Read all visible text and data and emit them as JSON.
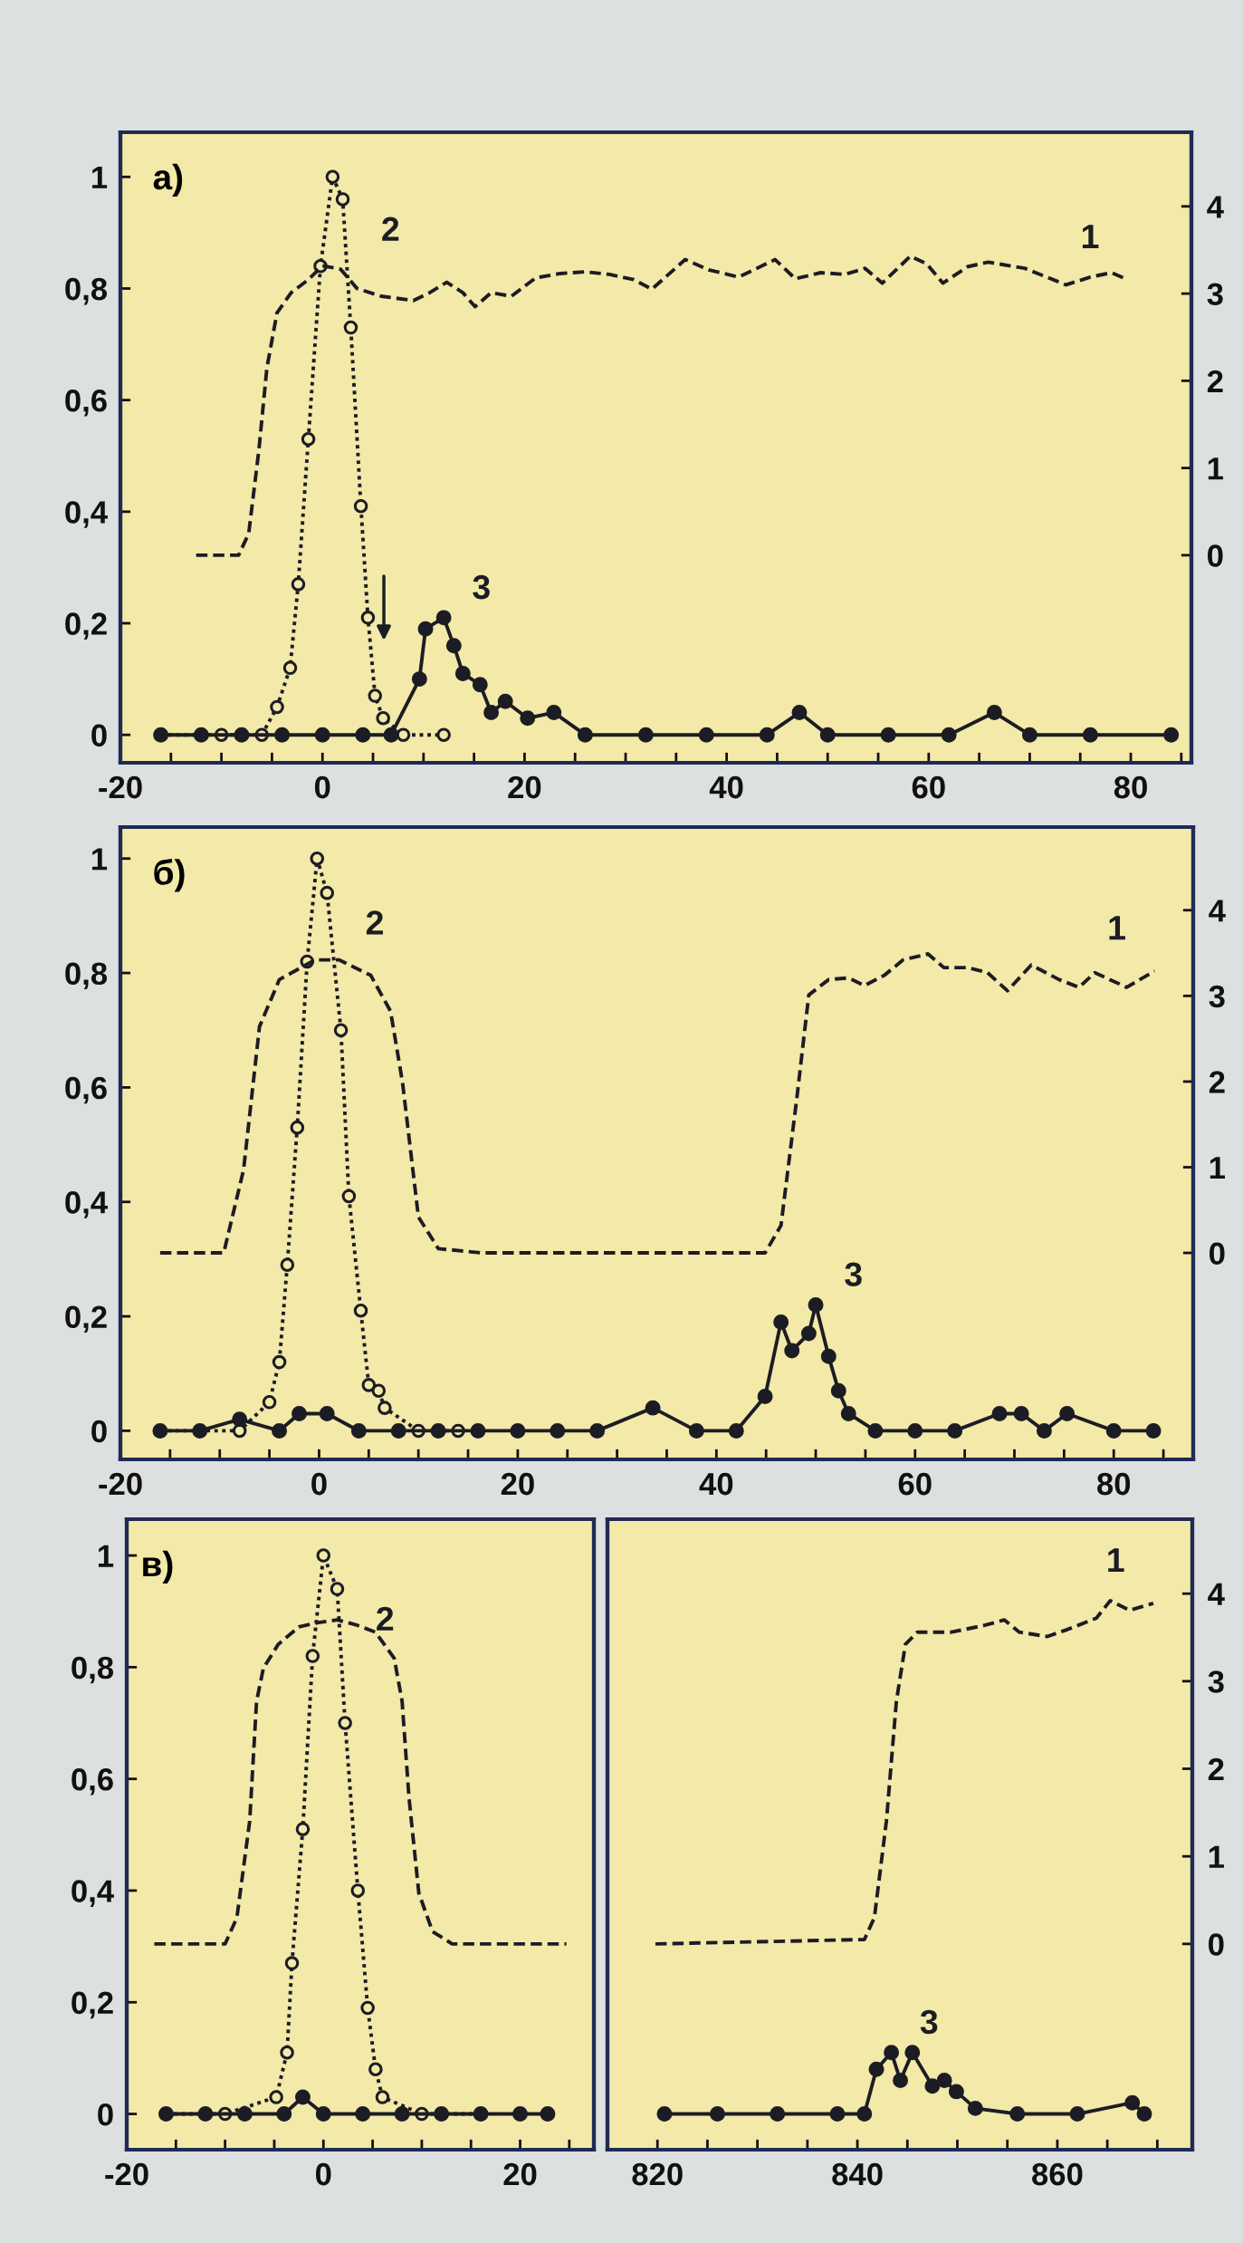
{
  "chart_data": [
    {
      "type": "line",
      "title": "а)",
      "xlim": [
        -20,
        86
      ],
      "ylim": [
        -0.05,
        1.08
      ],
      "y2lim": [
        -2.38,
        4.85
      ],
      "xticks": [
        -20,
        {
          "value": -15,
          "label": null
        },
        {
          "value": -10,
          "label": null
        },
        {
          "value": -5,
          "label": null
        },
        0,
        {
          "value": 5,
          "label": null
        },
        {
          "value": 10,
          "label": null
        },
        {
          "value": 15,
          "label": null
        },
        20,
        {
          "value": 25,
          "label": null
        },
        {
          "value": 30,
          "label": null
        },
        {
          "value": 35,
          "label": null
        },
        40,
        {
          "value": 45,
          "label": null
        },
        {
          "value": 50,
          "label": null
        },
        {
          "value": 55,
          "label": null
        },
        60,
        {
          "value": 65,
          "label": null
        },
        {
          "value": 70,
          "label": null
        },
        {
          "value": 75,
          "label": null
        },
        80,
        {
          "value": 85,
          "label": null
        }
      ],
      "yticks": [
        0,
        {
          "value": 0.2,
          "label": "0,2"
        },
        {
          "value": 0.4,
          "label": "0,4"
        },
        {
          "value": 0.6,
          "label": "0,6"
        },
        {
          "value": 0.8,
          "label": "0,8"
        },
        1
      ],
      "y2ticks": [
        0,
        1,
        2,
        3,
        4
      ],
      "series": [
        {
          "name": "1",
          "axis": "y2",
          "color": "#1c1c24",
          "line_style": "dashed",
          "marker": "none",
          "x": [
            -12.5,
            -8.3,
            -7.3,
            -6.3,
            -5.5,
            -4.5,
            -3.1,
            -1.4,
            0,
            1.8,
            3.4,
            5.8,
            9.0,
            10.6,
            12.3,
            13.9,
            15.1,
            16.7,
            18.7,
            21.1,
            23.5,
            26.0,
            28.4,
            30.8,
            32.6,
            35.9,
            38.3,
            41.2,
            44.8,
            46.8,
            49.3,
            51.7,
            53.7,
            55.4,
            58.2,
            59.8,
            61.4,
            63.9,
            65.9,
            69.5,
            73.6,
            76.0,
            78.1,
            79.7
          ],
          "values": [
            0,
            0,
            0.25,
            1.2,
            2.15,
            2.78,
            3.01,
            3.16,
            3.32,
            3.28,
            3.06,
            2.97,
            2.92,
            3.01,
            3.13,
            3.01,
            2.85,
            3.01,
            2.97,
            3.18,
            3.23,
            3.25,
            3.22,
            3.16,
            3.05,
            3.39,
            3.27,
            3.19,
            3.39,
            3.17,
            3.24,
            3.22,
            3.29,
            3.12,
            3.43,
            3.34,
            3.12,
            3.31,
            3.36,
            3.29,
            3.1,
            3.19,
            3.24,
            3.16
          ]
        },
        {
          "name": "2",
          "color": "#1c1c24",
          "line_style": "dotted",
          "marker": "circle",
          "x": [
            -16,
            -10,
            -6,
            -4.5,
            -3.2,
            -2.4,
            -1.4,
            -0.2,
            1.0,
            2.0,
            2.8,
            3.8,
            4.5,
            5.2,
            6.0,
            8,
            12
          ],
          "values": [
            0,
            0,
            0,
            0.05,
            0.12,
            0.27,
            0.53,
            0.84,
            1.0,
            0.96,
            0.73,
            0.41,
            0.21,
            0.07,
            0.03,
            0,
            0
          ]
        },
        {
          "name": "3",
          "color": "#1c1c24",
          "line_style": "solid",
          "marker": "circle",
          "x": [
            -16,
            -12,
            -8,
            -4,
            0,
            4,
            6.8,
            9.6,
            10.2,
            12.0,
            13.0,
            13.9,
            15.6,
            16.7,
            18.1,
            20.3,
            22.9,
            26,
            32,
            38,
            44,
            47.2,
            50,
            56,
            62,
            66.5,
            70,
            76,
            84
          ],
          "values": [
            0,
            0,
            0,
            0,
            0,
            0,
            0,
            0.1,
            0.19,
            0.21,
            0.16,
            0.11,
            0.09,
            0.04,
            0.06,
            0.03,
            0.04,
            0,
            0,
            0,
            0,
            0.04,
            0,
            0,
            0,
            0.04,
            0,
            0,
            0
          ]
        }
      ]
    },
    {
      "type": "line",
      "title": "б)",
      "xlim": [
        -20,
        88
      ],
      "ylim": [
        -0.05,
        1.055
      ],
      "y2lim": [
        -2.41,
        4.97
      ],
      "xticks": [
        -20,
        {
          "value": -15,
          "label": null
        },
        {
          "value": -10,
          "label": null
        },
        {
          "value": -5,
          "label": null
        },
        0,
        {
          "value": 5,
          "label": null
        },
        {
          "value": 10,
          "label": null
        },
        {
          "value": 15,
          "label": null
        },
        20,
        {
          "value": 25,
          "label": null
        },
        {
          "value": 30,
          "label": null
        },
        {
          "value": 35,
          "label": null
        },
        40,
        {
          "value": 45,
          "label": null
        },
        {
          "value": 50,
          "label": null
        },
        {
          "value": 55,
          "label": null
        },
        60,
        {
          "value": 65,
          "label": null
        },
        {
          "value": 70,
          "label": null
        },
        {
          "value": 75,
          "label": null
        },
        80,
        {
          "value": 85,
          "label": null
        }
      ],
      "yticks": [
        0,
        {
          "value": 0.2,
          "label": "0,2"
        },
        {
          "value": 0.4,
          "label": "0,4"
        },
        {
          "value": 0.6,
          "label": "0,6"
        },
        {
          "value": 0.8,
          "label": "0,8"
        },
        1
      ],
      "y2ticks": [
        0,
        1,
        2,
        3,
        4
      ],
      "series": [
        {
          "name": "1",
          "axis": "y2",
          "color": "#1c1c24",
          "line_style": "dashed",
          "marker": "none",
          "x": [
            -16.0,
            -9.6,
            -7.6,
            -6.0,
            -4.0,
            -0.4,
            2.0,
            5.2,
            7.2,
            8.4,
            10.0,
            12.0,
            16.4,
            32.4,
            44.9,
            46.5,
            48.1,
            49.3,
            51.3,
            53.3,
            54.9,
            56.9,
            58.8,
            61.3,
            62.9,
            65.3,
            67.3,
            69.3,
            71.7,
            74.5,
            76.5,
            78.1,
            81.3,
            84.1
          ],
          "values": [
            0,
            0,
            0.97,
            2.64,
            3.19,
            3.42,
            3.42,
            3.24,
            2.82,
            1.99,
            0.42,
            0.05,
            0,
            0,
            0,
            0.32,
            1.81,
            3.01,
            3.19,
            3.21,
            3.12,
            3.24,
            3.42,
            3.49,
            3.33,
            3.33,
            3.27,
            3.06,
            3.36,
            3.19,
            3.1,
            3.27,
            3.1,
            3.29
          ]
        },
        {
          "name": "2",
          "color": "#1c1c24",
          "line_style": "dotted",
          "marker": "circle",
          "x": [
            -16,
            -8,
            -5.0,
            -4.0,
            -3.2,
            -2.2,
            -1.2,
            -0.2,
            0.8,
            2.2,
            3.0,
            4.2,
            5.0,
            6.0,
            6.6,
            10,
            14
          ],
          "values": [
            0,
            0,
            0.05,
            0.12,
            0.29,
            0.53,
            0.82,
            1.0,
            0.94,
            0.7,
            0.41,
            0.21,
            0.08,
            0.07,
            0.04,
            0,
            0
          ]
        },
        {
          "name": "3",
          "color": "#1c1c24",
          "line_style": "solid",
          "marker": "circle",
          "x": [
            -16,
            -12,
            -8.0,
            -4,
            -2.0,
            0.8,
            4,
            8,
            12,
            16,
            20,
            24,
            28,
            33.6,
            38,
            42,
            44.9,
            46.5,
            47.6,
            49.3,
            50.0,
            51.3,
            52.3,
            53.3,
            56,
            60,
            64,
            68.5,
            70.7,
            73,
            75.3,
            80,
            84
          ],
          "values": [
            0,
            0,
            0.02,
            0,
            0.03,
            0.03,
            0,
            0,
            0,
            0,
            0,
            0,
            0,
            0.04,
            0,
            0,
            0.06,
            0.19,
            0.14,
            0.17,
            0.22,
            0.13,
            0.07,
            0.03,
            0,
            0,
            0,
            0.03,
            0.03,
            0,
            0.03,
            0,
            0
          ]
        }
      ]
    },
    {
      "type": "line",
      "title": "в)",
      "xlim": [
        -20,
        27.5
      ],
      "ylim": [
        -0.064,
        1.065
      ],
      "y2lim": [
        -2.35,
        4.85
      ],
      "xticks": [
        -20,
        {
          "value": -15,
          "label": null
        },
        {
          "value": -10,
          "label": null
        },
        {
          "value": -5,
          "label": null
        },
        0,
        {
          "value": 5,
          "label": null
        },
        {
          "value": 10,
          "label": null
        },
        {
          "value": 15,
          "label": null
        },
        20,
        {
          "value": 25,
          "label": null
        }
      ],
      "yticks": [
        0,
        {
          "value": 0.2,
          "label": "0,2"
        },
        {
          "value": 0.4,
          "label": "0,4"
        },
        {
          "value": 0.6,
          "label": "0,6"
        },
        {
          "value": 0.8,
          "label": "0,8"
        },
        1
      ],
      "series": [
        {
          "axis": "y2",
          "color": "#1c1c24",
          "line_style": "dashed",
          "marker": "none",
          "x": [
            -17.2,
            -10.0,
            -8.8,
            -7.5,
            -6.8,
            -6.1,
            -4.6,
            -2.5,
            -0.5,
            1.4,
            3.4,
            5.3,
            7.2,
            8.0,
            8.7,
            9.7,
            11.1,
            13.1,
            24.7
          ],
          "values": [
            0,
            0,
            0.3,
            1.4,
            2.77,
            3.15,
            3.42,
            3.62,
            3.67,
            3.7,
            3.64,
            3.56,
            3.26,
            2.77,
            1.67,
            0.58,
            0.14,
            0,
            0
          ]
        },
        {
          "name": "2",
          "color": "#1c1c24",
          "line_style": "dotted",
          "marker": "circle",
          "x": [
            -16,
            -10,
            -4.8,
            -3.7,
            -3.2,
            -2.1,
            -1.1,
            0,
            1.4,
            2.2,
            3.5,
            4.5,
            5.3,
            6.0,
            10,
            16
          ],
          "values": [
            0,
            0,
            0.03,
            0.11,
            0.27,
            0.51,
            0.82,
            1.0,
            0.94,
            0.7,
            0.4,
            0.19,
            0.08,
            0.03,
            0,
            0
          ]
        },
        {
          "color": "#1c1c24",
          "line_style": "solid",
          "marker": "circle",
          "x": [
            -16,
            -12,
            -8,
            -4,
            -2.1,
            0,
            4,
            8,
            12,
            16,
            20,
            22.8
          ],
          "values": [
            0,
            0,
            0,
            0,
            0.03,
            0,
            0,
            0,
            0,
            0,
            0,
            0
          ]
        }
      ]
    },
    {
      "type": "line",
      "xlim": [
        815,
        873.5
      ],
      "ylim": [
        -0.064,
        1.065
      ],
      "y2lim": [
        -2.35,
        4.85
      ],
      "xticks": [
        820,
        {
          "value": 825,
          "label": null
        },
        {
          "value": 830,
          "label": null
        },
        {
          "value": 835,
          "label": null
        },
        840,
        {
          "value": 845,
          "label": null
        },
        {
          "value": 850,
          "label": null
        },
        {
          "value": 855,
          "label": null
        },
        860,
        {
          "value": 865,
          "label": null
        },
        {
          "value": 870,
          "label": null
        }
      ],
      "y2ticks": [
        0,
        1,
        2,
        3,
        4
      ],
      "series": [
        {
          "name": "1",
          "axis": "y2",
          "color": "#1c1c24",
          "line_style": "dashed",
          "marker": "none",
          "x": [
            819.8,
            840.7,
            841.7,
            842.9,
            843.9,
            844.8,
            846.0,
            849.4,
            852.8,
            854.7,
            856.2,
            859.0,
            861.0,
            863.9,
            865.3,
            867.2,
            869.6
          ],
          "values": [
            0,
            0.05,
            0.3,
            1.4,
            2.77,
            3.42,
            3.56,
            3.56,
            3.64,
            3.7,
            3.56,
            3.51,
            3.59,
            3.72,
            3.92,
            3.81,
            3.89
          ]
        },
        {
          "name": "3",
          "color": "#1c1c24",
          "line_style": "solid",
          "marker": "circle",
          "x": [
            820.7,
            826,
            832,
            838,
            840.7,
            841.9,
            843.4,
            844.3,
            845.5,
            847.5,
            848.7,
            849.9,
            851.8,
            856,
            862,
            867.5,
            868.7
          ],
          "values": [
            0,
            0,
            0,
            0,
            0,
            0.08,
            0.11,
            0.06,
            0.11,
            0.05,
            0.06,
            0.04,
            0.01,
            0,
            0,
            0.02,
            0
          ]
        }
      ]
    }
  ]
}
